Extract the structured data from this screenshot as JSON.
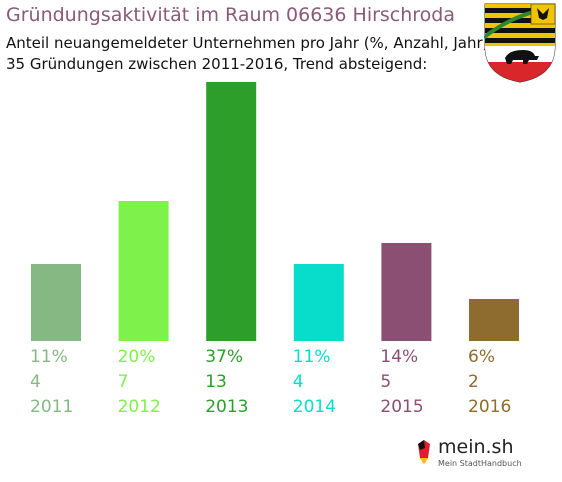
{
  "header": {
    "title": "Gründungsaktivität im Raum 06636 Hirschroda",
    "subtitle1": "Anteil neuangemeldeter Unternehmen pro Jahr (%, Anzahl, Jahr)",
    "subtitle2": "35 Gründungen zwischen 2011-2016, Trend absteigend:"
  },
  "logo": {
    "text": "mein.sh",
    "tagline": "Mein StadtHandbuch"
  },
  "chart_data": {
    "type": "bar",
    "categories": [
      "2011",
      "2012",
      "2013",
      "2014",
      "2015",
      "2016"
    ],
    "values": [
      11,
      20,
      37,
      11,
      14,
      6
    ],
    "counts": [
      4,
      7,
      13,
      4,
      5,
      2
    ],
    "percent_labels": [
      "11%",
      "20%",
      "37%",
      "11%",
      "14%",
      "6%"
    ],
    "colors": [
      "#86b884",
      "#7ef24a",
      "#2d9e2a",
      "#08dccb",
      "#8a4f72",
      "#8e6b2e"
    ],
    "ylim": [
      0,
      37
    ],
    "grid": false,
    "legend": "none"
  }
}
